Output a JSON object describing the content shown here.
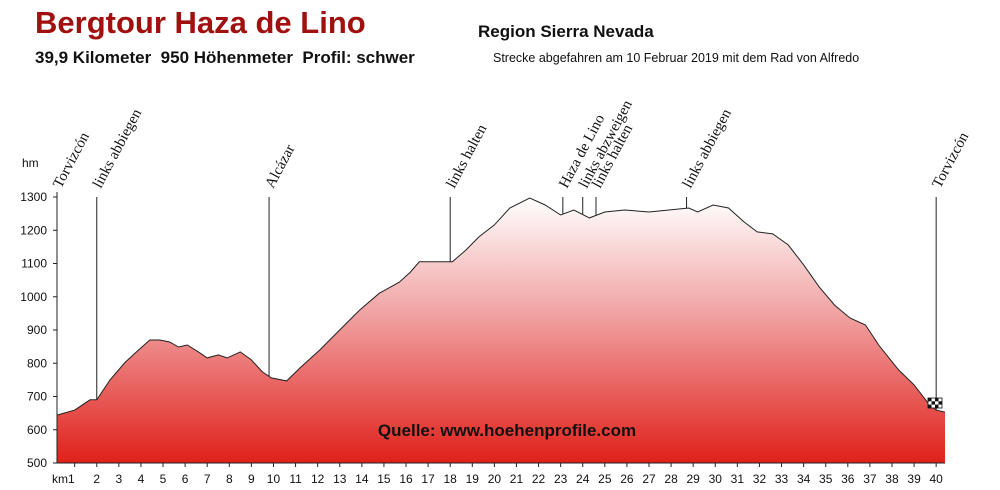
{
  "chart_data": {
    "type": "area",
    "title": "Bergtour Haza de Lino",
    "subtitle": "Region Sierra Nevada",
    "summary": "39,9 Kilometer  950 Höhenmeter  Profil: schwer",
    "note": "Strecke abgefahren am 10 Februar 2019 mit dem Rad von Alfredo",
    "source": "Quelle: www.hoehenprofile.com",
    "y_label": "hm",
    "color": "#e0201a",
    "x": [
      0.2,
      1,
      1.7,
      2,
      2.6,
      3.3,
      3.9,
      4.4,
      4.85,
      5.3,
      5.7,
      6.1,
      6.6,
      7.0,
      7.5,
      7.9,
      8.5,
      9.0,
      9.5,
      9.9,
      10.6,
      11.2,
      12.1,
      13.0,
      13.9,
      14.8,
      15.7,
      16.2,
      16.6,
      17.5,
      18.1,
      18.7,
      19.3,
      20.0,
      20.7,
      21.6,
      22.3,
      23.0,
      23.6,
      24.3,
      25.0,
      25.9,
      27.0,
      27.9,
      28.8,
      29.2,
      29.9,
      30.6,
      31.3,
      31.9,
      32.6,
      33.3,
      34.0,
      34.7,
      35.4,
      36.1,
      36.8,
      37.4,
      38.3,
      39.0,
      39.7,
      40.0,
      40.4
    ],
    "values": [
      644,
      659,
      690,
      690,
      750,
      804,
      840,
      870,
      870,
      864,
      849,
      855,
      834,
      816,
      825,
      816,
      834,
      810,
      774,
      756,
      747,
      786,
      840,
      900,
      960,
      1011,
      1044,
      1074,
      1105,
      1105,
      1105,
      1140,
      1180,
      1216,
      1267,
      1297,
      1276,
      1246,
      1261,
      1237,
      1255,
      1261,
      1255,
      1261,
      1267,
      1255,
      1276,
      1267,
      1225,
      1195,
      1189,
      1156,
      1096,
      1030,
      975,
      936,
      915,
      855,
      780,
      735,
      675,
      659,
      653
    ],
    "xlim": [
      0.2,
      40.4
    ],
    "ylim": [
      500,
      1300
    ],
    "xticks": [
      {
        "value": 1,
        "label": "km1"
      },
      2,
      3,
      4,
      5,
      6,
      7,
      8,
      9,
      10,
      11,
      12,
      13,
      14,
      15,
      16,
      17,
      18,
      19,
      20,
      21,
      22,
      23,
      24,
      25,
      26,
      27,
      28,
      29,
      30,
      31,
      32,
      33,
      34,
      35,
      36,
      37,
      38,
      39,
      40
    ],
    "yticks": [
      500,
      600,
      700,
      800,
      900,
      1000,
      1100,
      1200,
      1300
    ],
    "annotations": [
      {
        "x": 0.2,
        "label": "Torvizcón"
      },
      {
        "x": 2.0,
        "label": "links abbiegen"
      },
      {
        "x": 9.8,
        "label": "Alcázar"
      },
      {
        "x": 18.0,
        "label": "links halten"
      },
      {
        "x": 23.1,
        "label": "Haza de Lino"
      },
      {
        "x": 24.0,
        "label": "links abzweigen"
      },
      {
        "x": 24.6,
        "label": "links halten"
      },
      {
        "x": 28.7,
        "label": "links abbiegen"
      },
      {
        "x": 40.0,
        "label": "Torvizcón"
      }
    ]
  }
}
